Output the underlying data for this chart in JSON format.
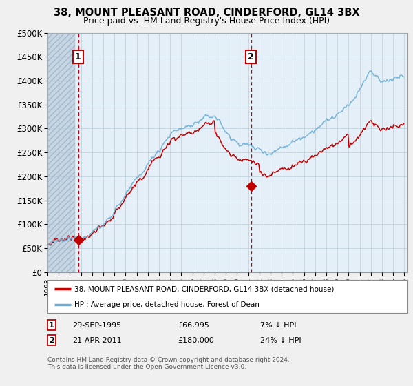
{
  "title": "38, MOUNT PLEASANT ROAD, CINDERFORD, GL14 3BX",
  "subtitle": "Price paid vs. HM Land Registry's House Price Index (HPI)",
  "ylim": [
    0,
    500000
  ],
  "yticks": [
    0,
    50000,
    100000,
    150000,
    200000,
    250000,
    300000,
    350000,
    400000,
    450000,
    500000
  ],
  "ytick_labels": [
    "£0",
    "£50K",
    "£100K",
    "£150K",
    "£200K",
    "£250K",
    "£300K",
    "£350K",
    "£400K",
    "£450K",
    "£500K"
  ],
  "xlim_start": 1993.0,
  "xlim_end": 2025.3,
  "xticks": [
    1993,
    1994,
    1995,
    1996,
    1997,
    1998,
    1999,
    2000,
    2001,
    2002,
    2003,
    2004,
    2005,
    2006,
    2007,
    2008,
    2009,
    2010,
    2011,
    2012,
    2013,
    2014,
    2015,
    2016,
    2017,
    2018,
    2019,
    2020,
    2021,
    2022,
    2023,
    2024,
    2025
  ],
  "hpi_color": "#6aaed6",
  "price_color": "#c00000",
  "plot_bg_color": "#ddeeff",
  "plot_bg_alpha": 0.35,
  "hatch_facecolor": "#c8d8e8",
  "sale1_x": 1995.75,
  "sale1_y": 66995,
  "sale2_x": 2011.28,
  "sale2_y": 180000,
  "legend1": "38, MOUNT PLEASANT ROAD, CINDERFORD, GL14 3BX (detached house)",
  "legend2": "HPI: Average price, detached house, Forest of Dean",
  "annotation1_date": "29-SEP-1995",
  "annotation1_price": "£66,995",
  "annotation1_hpi": "7% ↓ HPI",
  "annotation2_date": "21-APR-2011",
  "annotation2_price": "£180,000",
  "annotation2_hpi": "24% ↓ HPI",
  "footer": "Contains HM Land Registry data © Crown copyright and database right 2024.\nThis data is licensed under the Open Government Licence v3.0.",
  "bg_color": "#f0f0f0"
}
